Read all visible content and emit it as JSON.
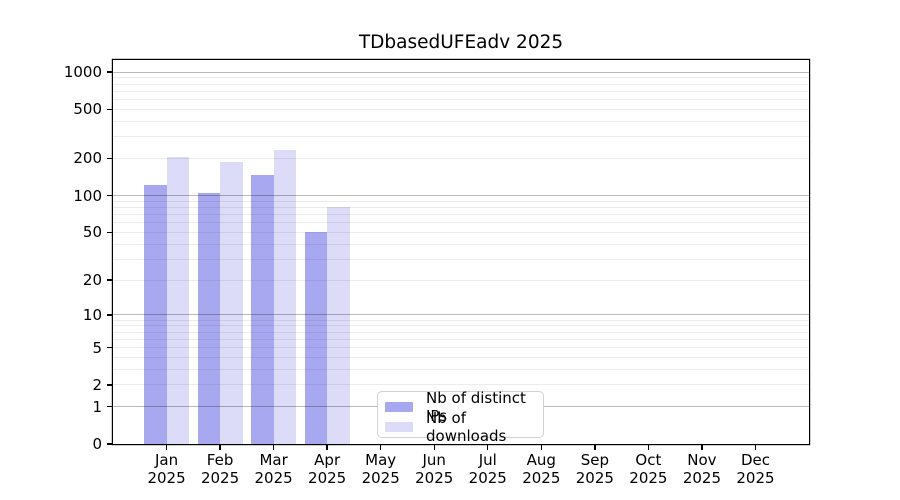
{
  "figure": {
    "background": "#ffffff"
  },
  "chart_data": {
    "type": "bar",
    "title": "TDbasedUFEadv 2025",
    "categories": [
      "Jan 2025",
      "Feb 2025",
      "Mar 2025",
      "Apr 2025",
      "May 2025",
      "Jun 2025",
      "Jul 2025",
      "Aug 2025",
      "Sep 2025",
      "Oct 2025",
      "Nov 2025",
      "Dec 2025"
    ],
    "series": [
      {
        "name": "Nb of distinct IPs",
        "color": "#a8a8f0",
        "values": [
          121,
          104,
          148,
          50,
          0,
          0,
          0,
          0,
          0,
          0,
          0,
          0
        ]
      },
      {
        "name": "Nb of downloads",
        "color": "#dcdcf8",
        "values": [
          205,
          186,
          233,
          80,
          0,
          0,
          0,
          0,
          0,
          0,
          0,
          0
        ]
      }
    ],
    "xlabel": "",
    "ylabel": "",
    "yscale": "log(v+1)",
    "ytick_labels": [
      0,
      1,
      2,
      5,
      10,
      20,
      50,
      100,
      200,
      500,
      1000
    ],
    "ylim": [
      0,
      1250
    ],
    "grid": "horizontal",
    "grid_major_at": [
      1,
      10,
      100,
      1000
    ],
    "legend_position": "bottom-center"
  },
  "colors": {
    "bar_distinct_ips": "#a8a8f0",
    "bar_downloads": "#dcdcf8",
    "grid_major": "#bdbdbd",
    "grid_minor": "#ececec",
    "spine": "#000000",
    "legend_border": "#d2d2d2"
  }
}
